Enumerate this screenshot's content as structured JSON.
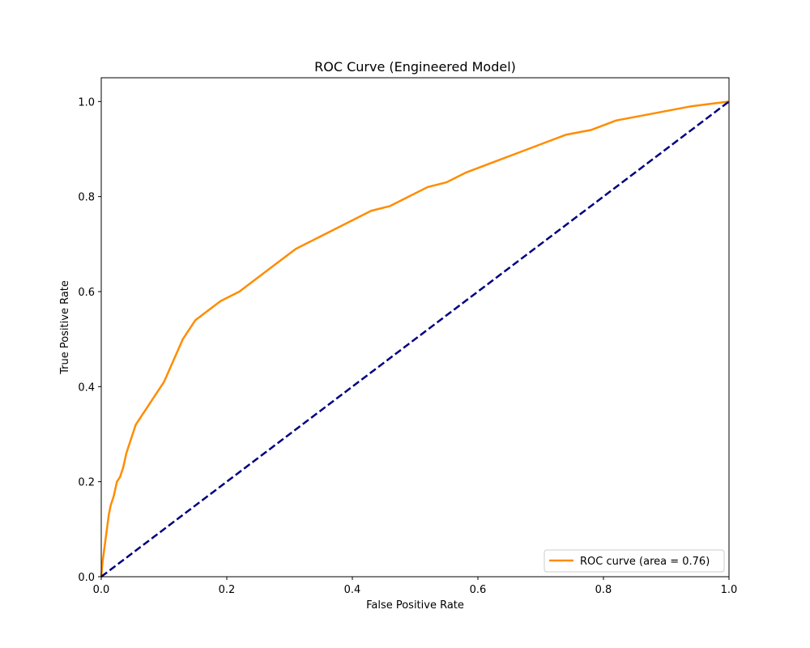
{
  "chart_data": {
    "type": "line",
    "title": "ROC Curve (Engineered Model)",
    "xlabel": "False Positive Rate",
    "ylabel": "True Positive Rate",
    "xlim": [
      0.0,
      1.0
    ],
    "ylim": [
      0.0,
      1.05
    ],
    "x_ticks": [
      0.0,
      0.2,
      0.4,
      0.6,
      0.8,
      1.0
    ],
    "y_ticks": [
      0.0,
      0.2,
      0.4,
      0.6,
      0.8,
      1.0
    ],
    "x_tick_labels": [
      "0.0",
      "0.2",
      "0.4",
      "0.6",
      "0.8",
      "1.0"
    ],
    "y_tick_labels": [
      "0.0",
      "0.2",
      "0.4",
      "0.6",
      "0.8",
      "1.0"
    ],
    "grid": false,
    "legend_position": "lower right",
    "series": [
      {
        "name": "ROC curve (area = 0.76)",
        "color": "#ff8c00",
        "line_style": "solid",
        "points": [
          [
            0.0,
            0.0
          ],
          [
            0.002,
            0.03
          ],
          [
            0.004,
            0.05
          ],
          [
            0.006,
            0.07
          ],
          [
            0.008,
            0.09
          ],
          [
            0.01,
            0.11
          ],
          [
            0.012,
            0.13
          ],
          [
            0.015,
            0.15
          ],
          [
            0.02,
            0.17
          ],
          [
            0.025,
            0.2
          ],
          [
            0.03,
            0.21
          ],
          [
            0.035,
            0.23
          ],
          [
            0.04,
            0.26
          ],
          [
            0.045,
            0.28
          ],
          [
            0.05,
            0.3
          ],
          [
            0.055,
            0.32
          ],
          [
            0.06,
            0.33
          ],
          [
            0.07,
            0.35
          ],
          [
            0.08,
            0.37
          ],
          [
            0.09,
            0.39
          ],
          [
            0.1,
            0.41
          ],
          [
            0.11,
            0.44
          ],
          [
            0.12,
            0.47
          ],
          [
            0.13,
            0.5
          ],
          [
            0.14,
            0.52
          ],
          [
            0.15,
            0.54
          ],
          [
            0.17,
            0.56
          ],
          [
            0.19,
            0.58
          ],
          [
            0.22,
            0.6
          ],
          [
            0.25,
            0.63
          ],
          [
            0.28,
            0.66
          ],
          [
            0.31,
            0.69
          ],
          [
            0.34,
            0.71
          ],
          [
            0.37,
            0.73
          ],
          [
            0.4,
            0.75
          ],
          [
            0.43,
            0.77
          ],
          [
            0.46,
            0.78
          ],
          [
            0.49,
            0.8
          ],
          [
            0.52,
            0.82
          ],
          [
            0.55,
            0.83
          ],
          [
            0.58,
            0.85
          ],
          [
            0.62,
            0.87
          ],
          [
            0.66,
            0.89
          ],
          [
            0.7,
            0.91
          ],
          [
            0.74,
            0.93
          ],
          [
            0.78,
            0.94
          ],
          [
            0.82,
            0.96
          ],
          [
            0.86,
            0.97
          ],
          [
            0.9,
            0.98
          ],
          [
            0.94,
            0.99
          ],
          [
            0.97,
            0.995
          ],
          [
            1.0,
            1.0
          ]
        ]
      },
      {
        "color": "#000080",
        "line_style": "dashed",
        "points": [
          [
            0.0,
            0.0
          ],
          [
            1.0,
            1.0
          ]
        ]
      }
    ]
  }
}
